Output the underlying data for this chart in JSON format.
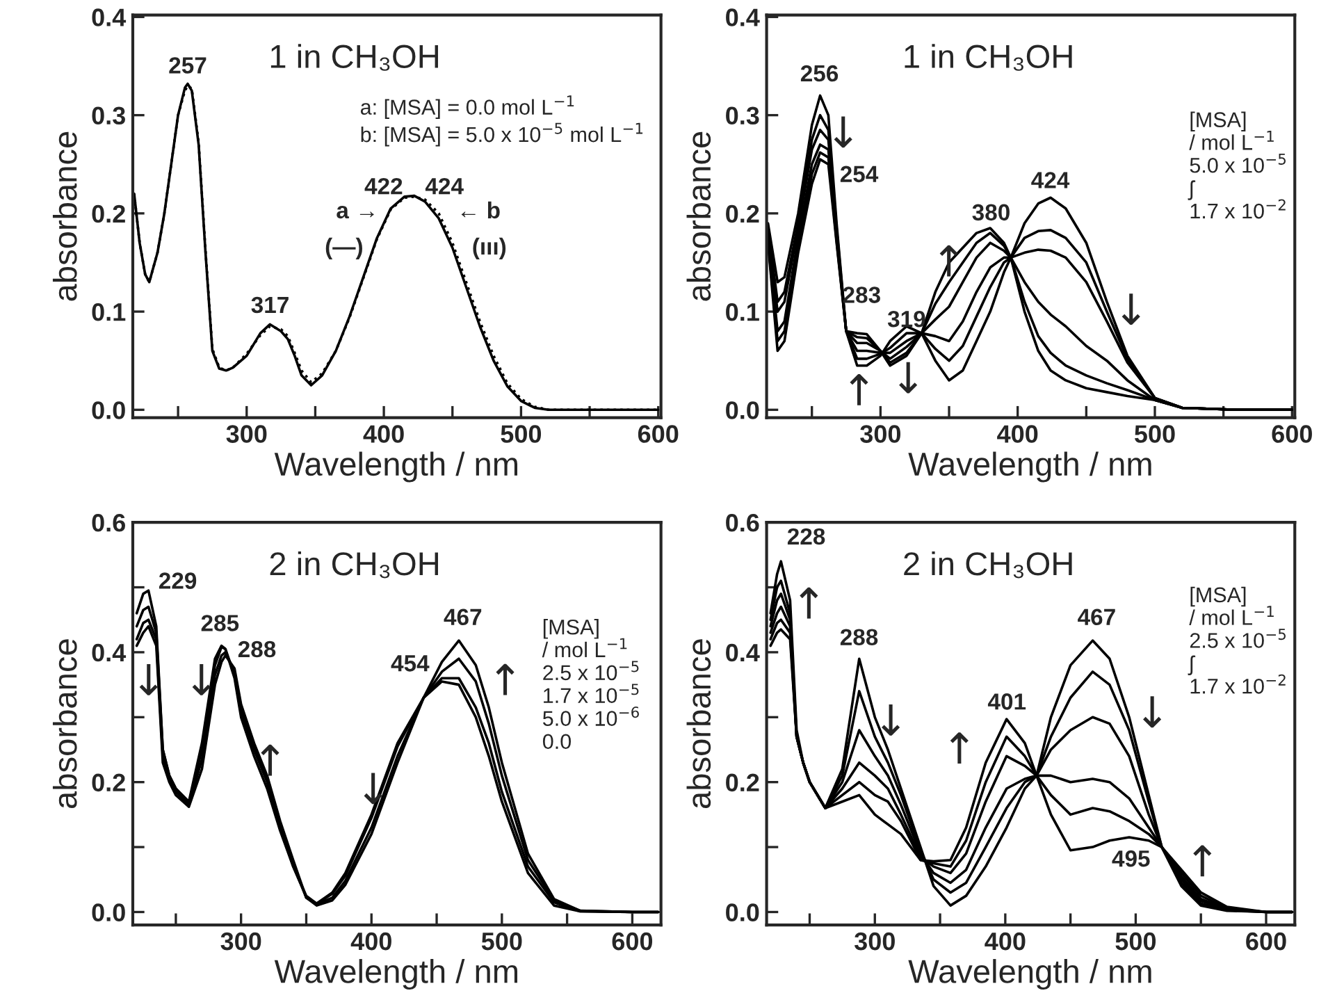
{
  "chart_data": [
    {
      "type": "line",
      "title": "1 in CH₃OH",
      "xlabel": "Wavelength / nm",
      "ylabel": "absorbance",
      "grid": false,
      "line_style": "solid",
      "xlim": [
        217,
        602
      ],
      "xticks": [
        {
          "value": 250,
          "label": null
        },
        300,
        {
          "value": 350,
          "label": null
        },
        400,
        {
          "value": 450,
          "label": null
        },
        500,
        {
          "value": 550,
          "label": null
        },
        600
      ],
      "ylim": [
        -0.008,
        0.402
      ],
      "yticks": [
        {
          "value": 0,
          "label": "0.0"
        },
        0.1,
        0.2,
        0.3,
        0.4
      ],
      "x": [
        218,
        222,
        226,
        229,
        235,
        240,
        245,
        250,
        255,
        257,
        260,
        265,
        270,
        275,
        280,
        285,
        290,
        300,
        310,
        317,
        325,
        330,
        335,
        340,
        347,
        355,
        365,
        375,
        385,
        395,
        405,
        415,
        422,
        430,
        440,
        450,
        460,
        470,
        480,
        490,
        500,
        510,
        520,
        550,
        600
      ],
      "series": [
        {
          "color": "#000000",
          "line_style": "solid",
          "values": [
            0.22,
            0.17,
            0.138,
            0.13,
            0.16,
            0.2,
            0.25,
            0.3,
            0.328,
            0.332,
            0.325,
            0.27,
            0.16,
            0.06,
            0.042,
            0.04,
            0.043,
            0.055,
            0.078,
            0.087,
            0.08,
            0.072,
            0.055,
            0.035,
            0.025,
            0.035,
            0.06,
            0.095,
            0.135,
            0.175,
            0.205,
            0.217,
            0.218,
            0.212,
            0.195,
            0.165,
            0.125,
            0.085,
            0.05,
            0.024,
            0.009,
            0.002,
            0.0,
            0.0,
            0.0
          ]
        },
        {
          "color": "#000000",
          "line_style": "dotted",
          "values": [
            0.22,
            0.17,
            0.138,
            0.13,
            0.16,
            0.2,
            0.25,
            0.3,
            0.325,
            0.33,
            0.327,
            0.272,
            0.162,
            0.062,
            0.043,
            0.04,
            0.043,
            0.057,
            0.076,
            0.085,
            0.082,
            0.075,
            0.058,
            0.04,
            0.028,
            0.037,
            0.06,
            0.094,
            0.134,
            0.174,
            0.204,
            0.216,
            0.217,
            0.214,
            0.2,
            0.17,
            0.13,
            0.09,
            0.055,
            0.027,
            0.011,
            0.003,
            0.0,
            0.0,
            0.0
          ]
        }
      ],
      "annotations": [
        "a: [MSA] = 0.0 mol L$^{−1}$\nb: [MSA] = 5.0 x 10$^{−5}$ mol L$^{−1}$",
        "257",
        "317",
        "422",
        "424",
        "a →",
        "(—)",
        "← b",
        "(ııı)"
      ]
    },
    {
      "type": "line",
      "title": "1 in CH₃OH",
      "xlabel": "Wavelength / nm",
      "ylabel": "absorbance",
      "grid": false,
      "line_style": "solid",
      "xlim": [
        217,
        602
      ],
      "xticks": [
        {
          "value": 250,
          "label": null
        },
        300,
        {
          "value": 350,
          "label": null
        },
        400,
        {
          "value": 450,
          "label": null
        },
        500,
        {
          "value": 550,
          "label": null
        },
        600
      ],
      "ylim": [
        -0.008,
        0.402
      ],
      "yticks": [
        {
          "value": 0,
          "label": "0.0"
        },
        0.1,
        0.2,
        0.3,
        0.4
      ],
      "x": [
        218,
        225,
        230,
        240,
        250,
        256,
        262,
        268,
        275,
        283,
        290,
        300,
        307,
        319,
        330,
        340,
        350,
        360,
        370,
        380,
        390,
        395,
        405,
        415,
        424,
        435,
        450,
        465,
        480,
        500,
        520,
        560,
        600
      ],
      "series": [
        {
          "color": "#000000",
          "values": [
            0.19,
            0.13,
            0.135,
            0.2,
            0.29,
            0.32,
            0.3,
            0.19,
            0.08,
            0.045,
            0.045,
            0.055,
            0.07,
            0.085,
            0.078,
            0.05,
            0.03,
            0.04,
            0.07,
            0.1,
            0.14,
            0.155,
            0.19,
            0.21,
            0.216,
            0.205,
            0.17,
            0.11,
            0.055,
            0.012,
            0.002,
            0,
            0
          ]
        },
        {
          "color": "#000000",
          "values": [
            0.185,
            0.11,
            0.12,
            0.19,
            0.275,
            0.3,
            0.285,
            0.185,
            0.08,
            0.052,
            0.052,
            0.057,
            0.063,
            0.078,
            0.078,
            0.062,
            0.05,
            0.065,
            0.095,
            0.125,
            0.15,
            0.155,
            0.175,
            0.182,
            0.183,
            0.175,
            0.15,
            0.1,
            0.052,
            0.012,
            0.002,
            0,
            0
          ]
        },
        {
          "color": "#000000",
          "values": [
            0.18,
            0.1,
            0.11,
            0.185,
            0.265,
            0.285,
            0.275,
            0.18,
            0.08,
            0.06,
            0.06,
            0.058,
            0.058,
            0.07,
            0.078,
            0.075,
            0.07,
            0.09,
            0.12,
            0.145,
            0.155,
            0.155,
            0.16,
            0.163,
            0.162,
            0.155,
            0.13,
            0.09,
            0.048,
            0.012,
            0.002,
            0,
            0
          ]
        },
        {
          "color": "#000000",
          "values": [
            0.175,
            0.08,
            0.09,
            0.175,
            0.25,
            0.27,
            0.265,
            0.175,
            0.08,
            0.068,
            0.068,
            0.06,
            0.052,
            0.064,
            0.078,
            0.092,
            0.105,
            0.13,
            0.155,
            0.17,
            0.162,
            0.155,
            0.13,
            0.11,
            0.097,
            0.085,
            0.065,
            0.05,
            0.03,
            0.01,
            0.002,
            0,
            0
          ]
        },
        {
          "color": "#000000",
          "values": [
            0.172,
            0.07,
            0.08,
            0.165,
            0.24,
            0.262,
            0.257,
            0.172,
            0.08,
            0.074,
            0.073,
            0.06,
            0.048,
            0.058,
            0.078,
            0.108,
            0.13,
            0.15,
            0.17,
            0.18,
            0.167,
            0.155,
            0.11,
            0.075,
            0.058,
            0.045,
            0.035,
            0.027,
            0.02,
            0.01,
            0.002,
            0,
            0
          ]
        },
        {
          "color": "#000000",
          "values": [
            0.17,
            0.06,
            0.07,
            0.16,
            0.23,
            0.255,
            0.25,
            0.17,
            0.08,
            0.078,
            0.077,
            0.06,
            0.045,
            0.055,
            0.078,
            0.12,
            0.15,
            0.165,
            0.18,
            0.185,
            0.17,
            0.155,
            0.1,
            0.06,
            0.04,
            0.03,
            0.022,
            0.018,
            0.014,
            0.01,
            0.002,
            0,
            0
          ]
        }
      ],
      "annotations": [
        "[MSA]\n/ mol L$^{−1}$\n5.0 x 10$^{−5}$\nʃ\n1.7 x 10$^{−2}$",
        "256",
        "↓",
        "254",
        "283",
        "319",
        "↑",
        "↓",
        "↑",
        "380",
        "424",
        "↓"
      ]
    },
    {
      "type": "line",
      "title": "2 in CH₃OH",
      "xlabel": "Wavelength / nm",
      "ylabel": "absorbance",
      "grid": false,
      "line_style": "solid",
      "xlim": [
        217,
        622
      ],
      "xticks": [
        {
          "value": 250,
          "label": null
        },
        300,
        {
          "value": 350,
          "label": null
        },
        400,
        {
          "value": 450,
          "label": null
        },
        500,
        {
          "value": 550,
          "label": null
        },
        600
      ],
      "ylim": [
        -0.02,
        0.6
      ],
      "yticks": [
        {
          "value": 0,
          "label": "0.0"
        },
        {
          "value": 0.1,
          "label": null
        },
        0.2,
        {
          "value": 0.3,
          "label": null
        },
        0.4,
        {
          "value": 0.5,
          "label": null
        },
        0.6
      ],
      "x": [
        220,
        225,
        229,
        235,
        240,
        245,
        250,
        260,
        270,
        280,
        285,
        288,
        295,
        300,
        310,
        320,
        330,
        340,
        350,
        358,
        370,
        380,
        400,
        420,
        440,
        454,
        467,
        480,
        490,
        500,
        520,
        540,
        560,
        600,
        620
      ],
      "series": [
        {
          "color": "#000000",
          "values": [
            0.46,
            0.49,
            0.495,
            0.44,
            0.25,
            0.21,
            0.19,
            0.17,
            0.26,
            0.39,
            0.41,
            0.405,
            0.36,
            0.3,
            0.24,
            0.19,
            0.125,
            0.07,
            0.025,
            0.013,
            0.03,
            0.06,
            0.15,
            0.26,
            0.33,
            0.355,
            0.35,
            0.3,
            0.24,
            0.17,
            0.06,
            0.01,
            0.001,
            0,
            0
          ]
        },
        {
          "color": "#000000",
          "values": [
            0.44,
            0.465,
            0.47,
            0.43,
            0.25,
            0.21,
            0.19,
            0.168,
            0.25,
            0.38,
            0.408,
            0.405,
            0.365,
            0.305,
            0.25,
            0.2,
            0.13,
            0.07,
            0.023,
            0.013,
            0.028,
            0.056,
            0.145,
            0.255,
            0.33,
            0.36,
            0.36,
            0.315,
            0.26,
            0.185,
            0.07,
            0.015,
            0.001,
            0,
            0
          ]
        },
        {
          "color": "#000000",
          "values": [
            0.42,
            0.445,
            0.45,
            0.42,
            0.24,
            0.205,
            0.185,
            0.165,
            0.235,
            0.365,
            0.395,
            0.4,
            0.37,
            0.31,
            0.255,
            0.205,
            0.135,
            0.075,
            0.022,
            0.012,
            0.022,
            0.048,
            0.13,
            0.24,
            0.33,
            0.37,
            0.39,
            0.355,
            0.29,
            0.21,
            0.08,
            0.018,
            0.002,
            0,
            0
          ]
        },
        {
          "color": "#000000",
          "values": [
            0.41,
            0.43,
            0.44,
            0.41,
            0.23,
            0.2,
            0.18,
            0.162,
            0.22,
            0.35,
            0.385,
            0.395,
            0.375,
            0.32,
            0.26,
            0.21,
            0.14,
            0.08,
            0.022,
            0.01,
            0.018,
            0.042,
            0.12,
            0.23,
            0.33,
            0.385,
            0.418,
            0.38,
            0.315,
            0.23,
            0.09,
            0.02,
            0.002,
            0,
            0
          ]
        }
      ],
      "annotations": [
        "[MSA]\n/ mol L$^{−1}$\n2.5 x 10$^{−5}$\n1.7 x 10$^{−5}$\n5.0 x 10$^{−6}$\n0.0",
        "229",
        "↓",
        "285",
        "↓",
        "288",
        "↑",
        "↓",
        "454",
        "467",
        "↑"
      ]
    },
    {
      "type": "line",
      "title": "2 in CH₃OH",
      "xlabel": "Wavelength / nm",
      "ylabel": "absorbance",
      "grid": false,
      "line_style": "solid",
      "xlim": [
        217,
        622
      ],
      "xticks": [
        {
          "value": 250,
          "label": null
        },
        300,
        {
          "value": 350,
          "label": null
        },
        400,
        {
          "value": 450,
          "label": null
        },
        500,
        {
          "value": 550,
          "label": null
        },
        600
      ],
      "ylim": [
        -0.02,
        0.6
      ],
      "yticks": [
        {
          "value": 0,
          "label": "0.0"
        },
        {
          "value": 0.1,
          "label": null
        },
        0.2,
        {
          "value": 0.3,
          "label": null
        },
        0.4,
        {
          "value": 0.5,
          "label": null
        },
        0.6
      ],
      "x": [
        220,
        225,
        228,
        235,
        240,
        245,
        250,
        262,
        275,
        288,
        300,
        310,
        320,
        335,
        345,
        358,
        370,
        385,
        401,
        415,
        424,
        435,
        450,
        467,
        480,
        495,
        510,
        520,
        535,
        550,
        570,
        600,
        620
      ],
      "series": [
        {
          "color": "#000000",
          "values": [
            0.41,
            0.43,
            0.435,
            0.42,
            0.27,
            0.23,
            0.2,
            0.16,
            0.22,
            0.39,
            0.3,
            0.25,
            0.19,
            0.1,
            0.04,
            0.01,
            0.025,
            0.07,
            0.13,
            0.19,
            0.21,
            0.3,
            0.38,
            0.418,
            0.39,
            0.3,
            0.18,
            0.1,
            0.04,
            0.01,
            0.002,
            0,
            0
          ]
        },
        {
          "color": "#000000",
          "values": [
            0.42,
            0.445,
            0.45,
            0.43,
            0.27,
            0.23,
            0.2,
            0.16,
            0.21,
            0.34,
            0.27,
            0.23,
            0.18,
            0.095,
            0.05,
            0.03,
            0.045,
            0.1,
            0.16,
            0.2,
            0.21,
            0.27,
            0.33,
            0.37,
            0.35,
            0.28,
            0.17,
            0.1,
            0.045,
            0.013,
            0.003,
            0,
            0
          ]
        },
        {
          "color": "#000000",
          "values": [
            0.43,
            0.46,
            0.47,
            0.44,
            0.27,
            0.23,
            0.2,
            0.16,
            0.2,
            0.28,
            0.24,
            0.21,
            0.165,
            0.09,
            0.06,
            0.045,
            0.065,
            0.13,
            0.19,
            0.205,
            0.21,
            0.25,
            0.28,
            0.3,
            0.29,
            0.24,
            0.15,
            0.1,
            0.05,
            0.017,
            0.004,
            0,
            0
          ]
        },
        {
          "color": "#000000",
          "values": [
            0.44,
            0.48,
            0.49,
            0.45,
            0.27,
            0.23,
            0.2,
            0.16,
            0.19,
            0.23,
            0.21,
            0.19,
            0.15,
            0.085,
            0.07,
            0.06,
            0.09,
            0.17,
            0.24,
            0.225,
            0.21,
            0.21,
            0.2,
            0.205,
            0.2,
            0.175,
            0.13,
            0.1,
            0.055,
            0.02,
            0.005,
            0,
            0
          ]
        },
        {
          "color": "#000000",
          "values": [
            0.45,
            0.5,
            0.51,
            0.46,
            0.27,
            0.23,
            0.2,
            0.16,
            0.18,
            0.2,
            0.18,
            0.17,
            0.14,
            0.08,
            0.075,
            0.07,
            0.11,
            0.2,
            0.27,
            0.24,
            0.21,
            0.18,
            0.15,
            0.16,
            0.155,
            0.14,
            0.12,
            0.1,
            0.06,
            0.025,
            0.006,
            0,
            0
          ]
        },
        {
          "color": "#000000",
          "values": [
            0.46,
            0.52,
            0.54,
            0.48,
            0.28,
            0.23,
            0.2,
            0.16,
            0.17,
            0.18,
            0.15,
            0.135,
            0.12,
            0.08,
            0.078,
            0.08,
            0.13,
            0.23,
            0.297,
            0.26,
            0.21,
            0.15,
            0.095,
            0.1,
            0.11,
            0.115,
            0.11,
            0.1,
            0.065,
            0.03,
            0.008,
            0,
            0
          ]
        }
      ],
      "annotations": [
        "[MSA]\n/ mol L$^{−1}$\n2.5 x 10$^{−5}$\nʃ\n1.7 x 10$^{−2}$",
        "228",
        "↑",
        "288",
        "↓",
        "↑",
        "401",
        "467",
        "↓",
        "495",
        "↑"
      ]
    }
  ]
}
